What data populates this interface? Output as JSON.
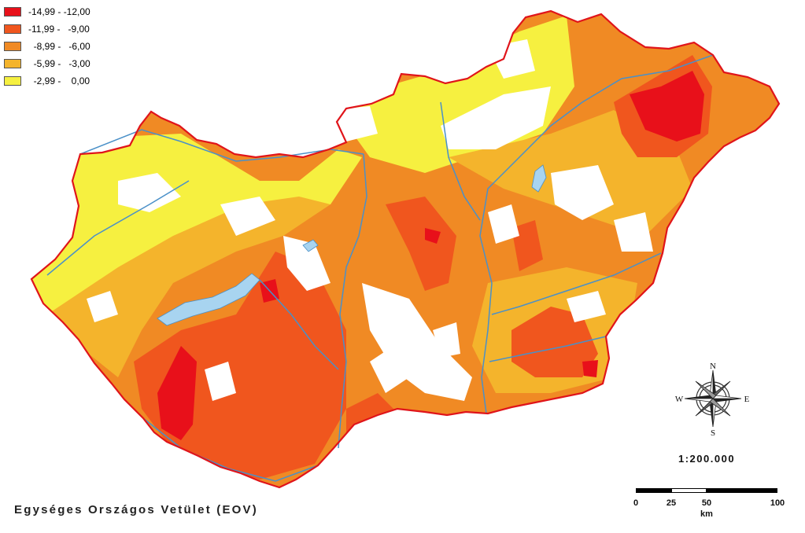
{
  "legend": {
    "items": [
      {
        "label": "-14,99 - -12,00",
        "color": "#e8101a"
      },
      {
        "label": "-11,99 -   -9,00",
        "color": "#f0561e"
      },
      {
        "label": "  -8,99 -   -6,00",
        "color": "#f08a24"
      },
      {
        "label": "  -5,99 -   -3,00",
        "color": "#f4b42c"
      },
      {
        "label": "  -2,99 -    0,00",
        "color": "#f6f040"
      }
    ]
  },
  "map": {
    "border_color": "#e0141a",
    "river_color": "#4a90c8",
    "lake_color": "#a8d4f0"
  },
  "projection_label": "Egységes Országos Vetület (EOV)",
  "scale": {
    "ratio": "1:200.000",
    "ticks": [
      "0",
      "25",
      "50",
      "100"
    ],
    "unit": "km"
  },
  "compass": {
    "n": "N",
    "s": "S",
    "e": "E",
    "w": "W"
  }
}
